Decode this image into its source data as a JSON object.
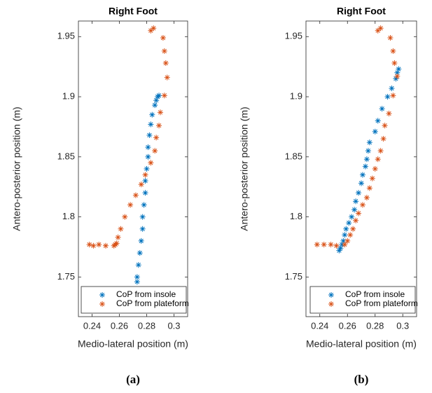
{
  "chart_data": [
    {
      "type": "scatter",
      "title": "Right Foot",
      "panel_label": "(a)",
      "xlabel": "Medio-lateral position (m)",
      "ylabel": "Antero-posterior position (m)",
      "xlim": [
        0.23,
        0.31
      ],
      "ylim": [
        1.717,
        1.963
      ],
      "xticks": [
        0.24,
        0.26,
        0.28,
        0.3
      ],
      "yticks": [
        1.75,
        1.8,
        1.85,
        1.9,
        1.95
      ],
      "legend": "lower right",
      "series": [
        {
          "name": "CoP from insole",
          "color": "#0072bd",
          "x": [
            0.288,
            0.289,
            0.287,
            0.286,
            0.284,
            0.283,
            0.282,
            0.281,
            0.281,
            0.28,
            0.279,
            0.279,
            0.278,
            0.277,
            0.277,
            0.276,
            0.275,
            0.274,
            0.273,
            0.273
          ],
          "y": [
            1.9,
            1.901,
            1.897,
            1.893,
            1.885,
            1.877,
            1.868,
            1.858,
            1.85,
            1.84,
            1.83,
            1.82,
            1.81,
            1.8,
            1.79,
            1.78,
            1.77,
            1.76,
            1.75,
            1.746
          ]
        },
        {
          "name": "CoP from plateform",
          "color": "#d95319",
          "x": [
            0.285,
            0.283,
            0.292,
            0.293,
            0.294,
            0.295,
            0.293,
            0.29,
            0.289,
            0.287,
            0.286,
            0.283,
            0.279,
            0.276,
            0.272,
            0.268,
            0.264,
            0.261,
            0.259,
            0.258,
            0.257,
            0.256,
            0.25,
            0.245,
            0.241,
            0.238
          ],
          "y": [
            1.957,
            1.955,
            1.949,
            1.938,
            1.928,
            1.916,
            1.901,
            1.887,
            1.876,
            1.866,
            1.855,
            1.845,
            1.835,
            1.827,
            1.818,
            1.81,
            1.8,
            1.79,
            1.783,
            1.778,
            1.777,
            1.776,
            1.776,
            1.777,
            1.776,
            1.777
          ]
        }
      ]
    },
    {
      "type": "scatter",
      "title": "Right Foot",
      "panel_label": "(b)",
      "xlabel": "Medio-lateral position (m)",
      "ylabel": "Antero-posterior position (m)",
      "xlim": [
        0.23,
        0.31
      ],
      "ylim": [
        1.717,
        1.963
      ],
      "xticks": [
        0.24,
        0.26,
        0.28,
        0.3
      ],
      "yticks": [
        1.75,
        1.8,
        1.85,
        1.9,
        1.95
      ],
      "legend": "lower right",
      "series": [
        {
          "name": "CoP from insole",
          "color": "#0072bd",
          "x": [
            0.297,
            0.296,
            0.295,
            0.292,
            0.289,
            0.285,
            0.282,
            0.28,
            0.276,
            0.275,
            0.274,
            0.273,
            0.271,
            0.27,
            0.268,
            0.266,
            0.265,
            0.263,
            0.261,
            0.259,
            0.258,
            0.257,
            0.256,
            0.255,
            0.254
          ],
          "y": [
            1.923,
            1.92,
            1.915,
            1.907,
            1.9,
            1.89,
            1.88,
            1.871,
            1.862,
            1.855,
            1.848,
            1.842,
            1.835,
            1.828,
            1.82,
            1.813,
            1.806,
            1.8,
            1.795,
            1.79,
            1.785,
            1.78,
            1.777,
            1.774,
            1.772
          ]
        },
        {
          "name": "CoP from plateform",
          "color": "#d95319",
          "x": [
            0.284,
            0.282,
            0.291,
            0.293,
            0.294,
            0.296,
            0.293,
            0.29,
            0.287,
            0.286,
            0.284,
            0.282,
            0.28,
            0.278,
            0.276,
            0.274,
            0.271,
            0.268,
            0.266,
            0.264,
            0.262,
            0.26,
            0.258,
            0.252,
            0.248,
            0.243,
            0.238
          ],
          "y": [
            1.957,
            1.955,
            1.949,
            1.938,
            1.928,
            1.917,
            1.901,
            1.886,
            1.876,
            1.865,
            1.855,
            1.848,
            1.84,
            1.832,
            1.824,
            1.816,
            1.81,
            1.803,
            1.797,
            1.79,
            1.785,
            1.78,
            1.777,
            1.776,
            1.777,
            1.777,
            1.777
          ]
        }
      ]
    }
  ]
}
